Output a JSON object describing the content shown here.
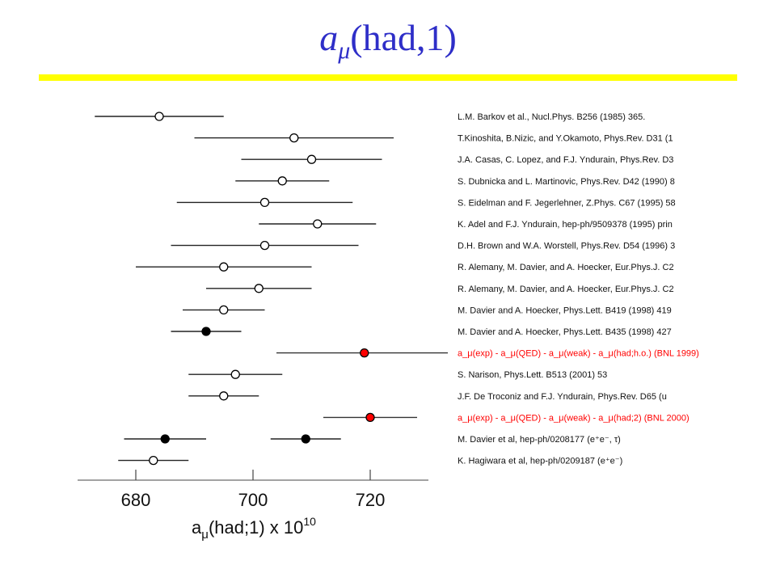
{
  "slide": {
    "title_symbol": "a",
    "title_sub": "μ",
    "title_rest": "(had,1)"
  },
  "colors": {
    "title": "#2e2ec8",
    "rule": "#ffff00",
    "highlight": "#ff0000",
    "text": "#111111"
  },
  "chart_data": {
    "type": "scatter",
    "orientation": "horizontal",
    "xlabel_base": "a",
    "xlabel_sub": "μ",
    "xlabel_main": "(had;1) x 10",
    "xlabel_exp": "10",
    "xlim": [
      670,
      730
    ],
    "xticks": [
      680,
      700,
      720
    ],
    "grid": false,
    "points": [
      {
        "label": "L.M. Barkov et al., Nucl.Phys. B256 (1985) 365.",
        "value": 684,
        "lo": 673,
        "hi": 695,
        "marker": "open",
        "color": "#000000"
      },
      {
        "label": "T.Kinoshita, B.Nizic, and Y.Okamoto, Phys.Rev. D31 (1",
        "value": 707,
        "lo": 690,
        "hi": 724,
        "marker": "open",
        "color": "#000000"
      },
      {
        "label": "J.A. Casas, C. Lopez, and F.J. Yndurain, Phys.Rev. D3",
        "value": 710,
        "lo": 698,
        "hi": 722,
        "marker": "open",
        "color": "#000000"
      },
      {
        "label": "S. Dubnicka and L. Martinovic, Phys.Rev. D42 (1990) 8",
        "value": 705,
        "lo": 697,
        "hi": 713,
        "marker": "open",
        "color": "#000000"
      },
      {
        "label": "S. Eidelman and F. Jegerlehner, Z.Phys. C67 (1995) 58",
        "value": 702,
        "lo": 687,
        "hi": 717,
        "marker": "open",
        "color": "#000000"
      },
      {
        "label": "K. Adel and F.J. Yndurain, hep-ph/9509378 (1995) prin",
        "value": 711,
        "lo": 701,
        "hi": 721,
        "marker": "open",
        "color": "#000000"
      },
      {
        "label": "D.H. Brown and W.A. Worstell, Phys.Rev. D54 (1996) 3",
        "value": 702,
        "lo": 686,
        "hi": 718,
        "marker": "open",
        "color": "#000000"
      },
      {
        "label": "R. Alemany, M. Davier, and A. Hoecker, Eur.Phys.J. C2",
        "value": 695,
        "lo": 680,
        "hi": 710,
        "marker": "open",
        "color": "#000000"
      },
      {
        "label": "R. Alemany, M. Davier, and A. Hoecker, Eur.Phys.J. C2",
        "value": 701,
        "lo": 692,
        "hi": 710,
        "marker": "open",
        "color": "#000000"
      },
      {
        "label": "M. Davier and A. Hoecker, Phys.Lett. B419 (1998) 419",
        "value": 695,
        "lo": 688,
        "hi": 702,
        "marker": "open",
        "color": "#000000"
      },
      {
        "label": "M. Davier and A. Hoecker, Phys.Lett. B435 (1998) 427",
        "value": 692,
        "lo": 686,
        "hi": 698,
        "marker": "filled",
        "color": "#000000"
      },
      {
        "label": "a_μ(exp) - a_μ(QED) - a_μ(weak) - a_μ(had;h.o.) (BNL 1999)",
        "value": 719,
        "lo": 704,
        "hi": 734,
        "marker": "filled",
        "color": "#ff0000"
      },
      {
        "label": "S. Narison, Phys.Lett. B513 (2001) 53",
        "value": 697,
        "lo": 689,
        "hi": 705,
        "marker": "open",
        "color": "#000000"
      },
      {
        "label": "J.F. De Troconiz and F.J. Yndurain, Phys.Rev. D65 (u",
        "value": 695,
        "lo": 689,
        "hi": 701,
        "marker": "open",
        "color": "#000000"
      },
      {
        "label": "a_μ(exp) - a_μ(QED) - a_μ(weak) - a_μ(had;2) (BNL 2000)",
        "value": 720,
        "lo": 712,
        "hi": 728,
        "marker": "filled",
        "color": "#ff0000"
      },
      {
        "label": "M. Davier et al, hep-ph/0208177 (e⁺e⁻, τ)",
        "values": [
          685,
          709
        ],
        "ranges": [
          [
            678,
            692
          ],
          [
            703,
            715
          ]
        ],
        "marker": "filled",
        "color": "#000000"
      },
      {
        "label": "K. Hagiwara et al, hep-ph/0209187 (e⁺e⁻)",
        "value": 683,
        "lo": 677,
        "hi": 689,
        "marker": "open",
        "color": "#000000"
      }
    ]
  }
}
